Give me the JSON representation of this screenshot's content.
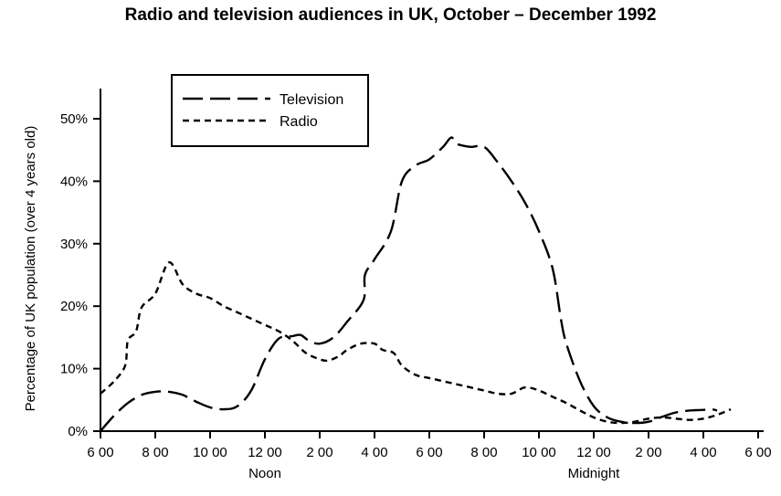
{
  "chart_data": {
    "type": "line",
    "title": "Radio and television audiences in UK, October – December 1992",
    "ylabel": "Percentage of UK population (over 4 years old)",
    "xlabel": "",
    "x_tick_labels": [
      "6 00",
      "8 00",
      "10 00",
      "12 00",
      "2 00",
      "4 00",
      "6 00",
      "8 00",
      "10 00",
      "12 00",
      "2 00",
      "4 00",
      "6 00"
    ],
    "x_sublabels": [
      {
        "at_tick": 3,
        "text": "Noon"
      },
      {
        "at_tick": 9,
        "text": "Midnight"
      }
    ],
    "y_tick_labels": [
      "0%",
      "10%",
      "20%",
      "30%",
      "40%",
      "50%"
    ],
    "ylim": [
      0,
      50
    ],
    "x_unit": "hours after 6 00",
    "xlim": [
      0,
      24
    ],
    "grid": false,
    "legend_position": "top-left",
    "series": [
      {
        "name": "Television",
        "style": "long-dash",
        "color": "#000000",
        "points": [
          [
            0,
            0
          ],
          [
            0.5,
            2.5
          ],
          [
            1,
            4.5
          ],
          [
            1.5,
            5.8
          ],
          [
            2,
            6.3
          ],
          [
            2.5,
            6.3
          ],
          [
            3,
            5.8
          ],
          [
            3.5,
            4.7
          ],
          [
            4,
            3.8
          ],
          [
            4.5,
            3.5
          ],
          [
            5,
            4
          ],
          [
            5.5,
            6.5
          ],
          [
            6,
            11.5
          ],
          [
            6.5,
            14.8
          ],
          [
            7,
            15.2
          ],
          [
            7.3,
            15.4
          ],
          [
            7.6,
            14.5
          ],
          [
            8,
            14
          ],
          [
            8.5,
            15
          ],
          [
            9,
            17.5
          ],
          [
            9.6,
            21
          ],
          [
            9.65,
            25
          ],
          [
            10,
            27.5
          ],
          [
            10.6,
            32
          ],
          [
            11,
            40
          ],
          [
            11.5,
            42.5
          ],
          [
            12,
            43.5
          ],
          [
            12.5,
            45.5
          ],
          [
            12.8,
            47
          ],
          [
            13,
            46
          ],
          [
            13.5,
            45.5
          ],
          [
            14,
            45.5
          ],
          [
            14.5,
            43
          ],
          [
            15,
            40
          ],
          [
            15.5,
            36.5
          ],
          [
            16,
            32
          ],
          [
            16.5,
            26
          ],
          [
            16.8,
            18
          ],
          [
            17,
            14
          ],
          [
            17.5,
            8
          ],
          [
            18,
            4
          ],
          [
            18.5,
            2.2
          ],
          [
            19,
            1.5
          ],
          [
            19.5,
            1.3
          ],
          [
            20,
            1.5
          ],
          [
            20.5,
            2.3
          ],
          [
            21,
            3
          ],
          [
            21.5,
            3.3
          ],
          [
            22,
            3.4
          ],
          [
            22.3,
            3.5
          ],
          [
            22.5,
            3.3
          ]
        ]
      },
      {
        "name": "Radio",
        "style": "short-dash",
        "color": "#000000",
        "points": [
          [
            0,
            6
          ],
          [
            0.5,
            8
          ],
          [
            0.9,
            10.5
          ],
          [
            1,
            14.5
          ],
          [
            1.3,
            16
          ],
          [
            1.5,
            19.8
          ],
          [
            2,
            22
          ],
          [
            2.5,
            27
          ],
          [
            3,
            23.5
          ],
          [
            3.5,
            22
          ],
          [
            4,
            21.3
          ],
          [
            4.5,
            20
          ],
          [
            5,
            19
          ],
          [
            5.5,
            18
          ],
          [
            6,
            17
          ],
          [
            6.5,
            16
          ],
          [
            7,
            14.5
          ],
          [
            7.5,
            12.5
          ],
          [
            8,
            11.5
          ],
          [
            8.3,
            11.3
          ],
          [
            8.7,
            12
          ],
          [
            9,
            13
          ],
          [
            9.5,
            14
          ],
          [
            10,
            14
          ],
          [
            10.3,
            13
          ],
          [
            10.7,
            12.5
          ],
          [
            11,
            10.5
          ],
          [
            11.5,
            9
          ],
          [
            12,
            8.5
          ],
          [
            12.5,
            8
          ],
          [
            13,
            7.5
          ],
          [
            13.5,
            7
          ],
          [
            14,
            6.5
          ],
          [
            14.5,
            6
          ],
          [
            15,
            6
          ],
          [
            15.5,
            7
          ],
          [
            16,
            6.5
          ],
          [
            16.5,
            5.5
          ],
          [
            17,
            4.5
          ],
          [
            17.5,
            3.3
          ],
          [
            18,
            2.2
          ],
          [
            18.5,
            1.5
          ],
          [
            19,
            1.3
          ],
          [
            19.5,
            1.5
          ],
          [
            20,
            2
          ],
          [
            20.5,
            2.2
          ],
          [
            21,
            2
          ],
          [
            21.5,
            1.8
          ],
          [
            22,
            2
          ],
          [
            22.5,
            2.6
          ],
          [
            23,
            3.5
          ]
        ]
      }
    ]
  }
}
